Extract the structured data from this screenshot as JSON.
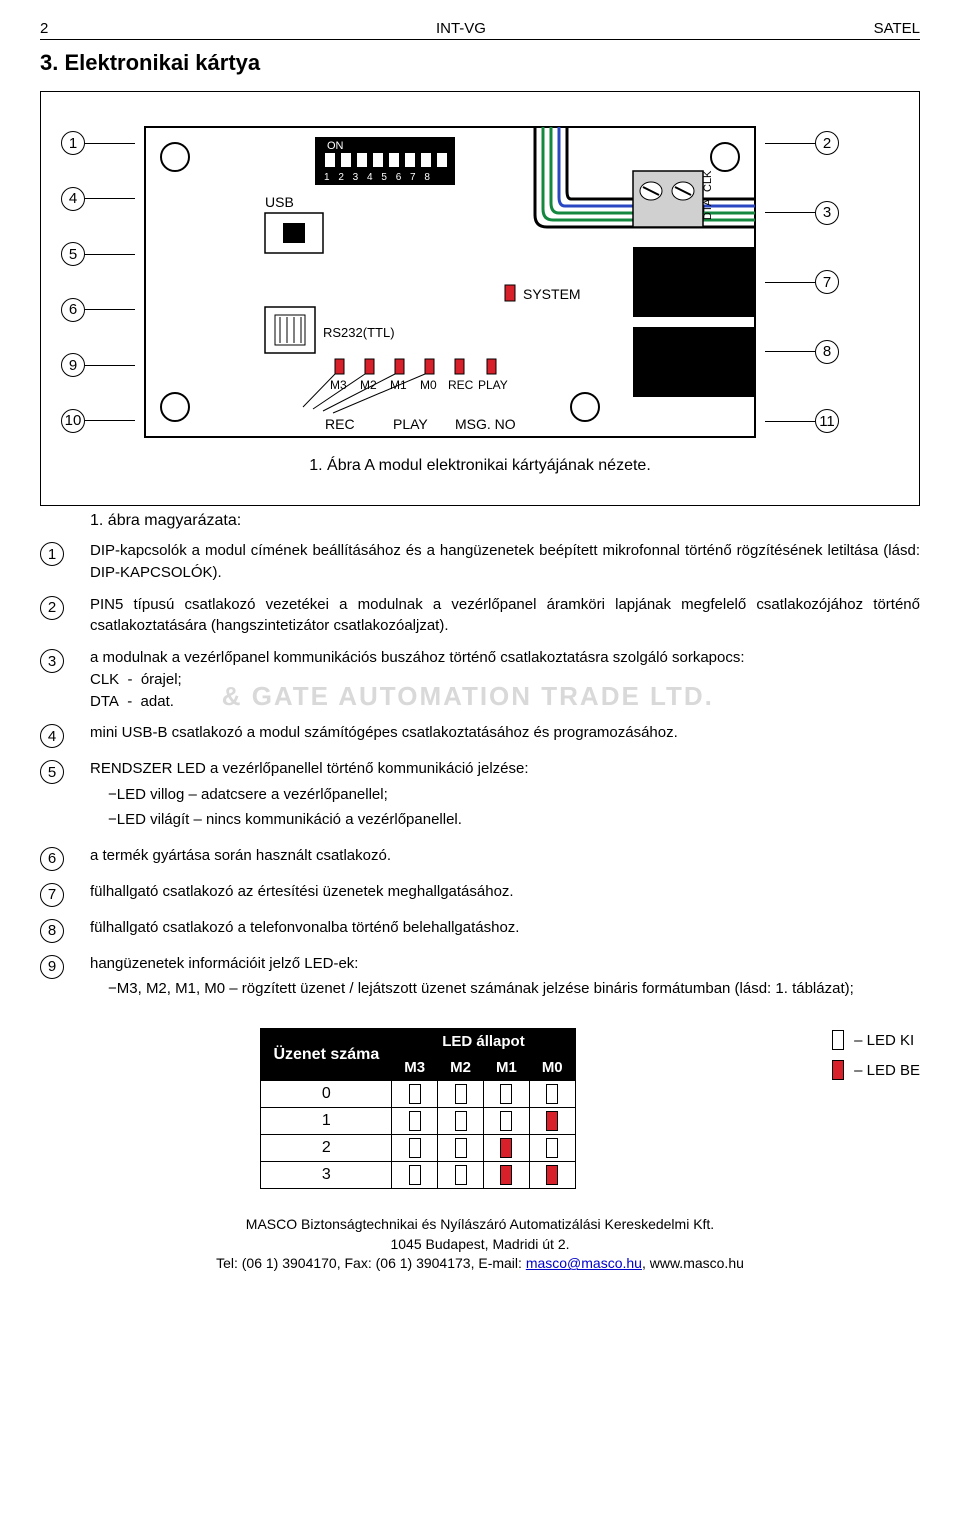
{
  "header": {
    "page_num": "2",
    "center": "INT-VG",
    "right": "SATEL"
  },
  "section": {
    "title": "3. Elektronikai kártya"
  },
  "diagram": {
    "caption": "1. Ábra A modul elektronikai kártyájának nézete.",
    "labels": {
      "on": "ON",
      "usb": "USB",
      "rs232": "RS232(TTL)",
      "system": "SYSTEM",
      "dta": "DTA",
      "clk": "CLK",
      "m3": "M3",
      "m2": "M2",
      "m1": "M1",
      "m0": "M0",
      "rec_small": "REC",
      "play_small": "PLAY",
      "rec": "REC",
      "play": "PLAY",
      "msg_no": "MSG. NO",
      "dip_numbers": "1  2  3  4  5  6  7  8"
    },
    "callouts_left": [
      "1",
      "4",
      "5",
      "6",
      "9",
      "10"
    ],
    "callouts_right": [
      "2",
      "3",
      "7",
      "8",
      "11"
    ]
  },
  "desc": {
    "intro": "1. ábra magyarázata:",
    "items": [
      {
        "n": "1",
        "html": "DIP-kapcsolók a modul címének beállításához és a hangüzenetek beépített mikrofonnal történő rögzítésének letiltása (lásd: DIP-<span class='smallcaps'>KAPCSOLÓK</span>)."
      },
      {
        "n": "2",
        "html": "PIN5 típusú csatlakozó vezetékei a modulnak a vezérlőpanel áramköri lapjának megfelelő csatlakozójához történő csatlakoztatására (hangszintetizátor csatlakozóaljzat)."
      },
      {
        "n": "3",
        "html": "a modulnak a vezérlőpanel kommunikációs buszához történő csatlakoztatásra szolgáló sorkapocs:<br>CLK&nbsp;&nbsp;-&nbsp;&nbsp;órajel;<span style='display:inline-block;position:relative'><span class='watermark' style='position:absolute;left:40px;top:-6px;white-space:nowrap'>&amp; GATE AUTOMATION TRADE LTD.</span></span><br>DTA&nbsp;&nbsp;-&nbsp;&nbsp;adat."
      },
      {
        "n": "4",
        "html": "mini USB-B csatlakozó a modul számítógépes csatlakoztatásához és programozásához."
      },
      {
        "n": "5",
        "html": "RENDSZER LED a vezérlőpanellel történő kommunikáció jelzése:<ul class='bullets'><li>LED villog – adatcsere a vezérlőpanellel;</li><li>LED világít – nincs kommunikáció a vezérlőpanellel.</li></ul>"
      },
      {
        "n": "6",
        "html": "a termék gyártása során használt csatlakozó."
      },
      {
        "n": "7",
        "html": "fülhallgató csatlakozó az értesítési üzenetek meghallgatásához."
      },
      {
        "n": "8",
        "html": "fülhallgató csatlakozó a telefonvonalba történő belehallgatáshoz."
      },
      {
        "n": "9",
        "html": "hangüzenetek információit jelző LED-ek:<ul class='bullets'><li>M3, M2, M1, M0 – rögzített üzenet / lejátszott üzenet számának jelzése bináris formátumban (lásd: 1. táblázat);</li></ul>"
      }
    ]
  },
  "led_table": {
    "header_msg": "Üzenet száma",
    "header_state": "LED állapot",
    "cols": [
      "M3",
      "M2",
      "M1",
      "M0"
    ],
    "rows": [
      {
        "num": "0",
        "leds": [
          0,
          0,
          0,
          0
        ]
      },
      {
        "num": "1",
        "leds": [
          0,
          0,
          0,
          1
        ]
      },
      {
        "num": "2",
        "leds": [
          0,
          0,
          1,
          0
        ]
      },
      {
        "num": "3",
        "leds": [
          0,
          0,
          1,
          1
        ]
      }
    ],
    "legend_off": "– LED KI",
    "legend_on": "– LED BE"
  },
  "footer": {
    "l1": "MASCO Biztonságtechnikai és Nyílászáró Automatizálási Kereskedelmi Kft.",
    "l2": "1045 Budapest, Madridi út 2.",
    "l3_pre": "Tel: (06 1) 3904170, Fax: (06 1) 3904173, E-mail: ",
    "l3_mail": "masco@masco.hu",
    "l3_post": ", www.masco.hu"
  }
}
